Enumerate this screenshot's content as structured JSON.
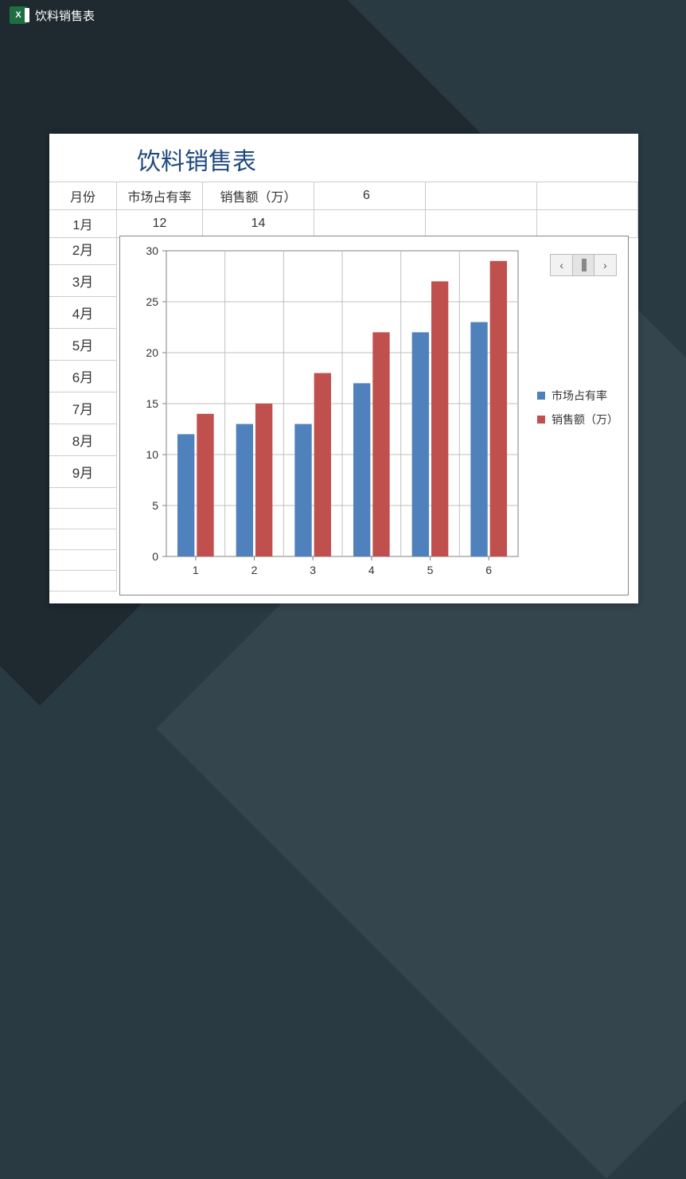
{
  "app_title": "饮料销售表",
  "sheet_title": "饮料销售表",
  "headers": {
    "month": "月份",
    "col1": "市场占有率",
    "col2": "销售额（万）",
    "col3_value": "6"
  },
  "first_data_row": {
    "month": "1月",
    "val1": "12",
    "val2": "14"
  },
  "month_labels": [
    "2月",
    "3月",
    "4月",
    "5月",
    "6月",
    "7月",
    "8月",
    "9月"
  ],
  "chart": {
    "type": "bar",
    "categories": [
      "1",
      "2",
      "3",
      "4",
      "5",
      "6"
    ],
    "series": [
      {
        "name": "市场占有率",
        "color": "#4f81bd",
        "values": [
          12,
          13,
          13,
          17,
          22,
          23
        ]
      },
      {
        "name": "销售额（万）",
        "color": "#c0504d",
        "values": [
          14,
          15,
          18,
          22,
          27,
          29
        ]
      }
    ],
    "ylim": [
      0,
      30
    ],
    "ytick_step": 5,
    "yticks": [
      "0",
      "5",
      "10",
      "15",
      "20",
      "25",
      "30"
    ],
    "plot_bg": "#ffffff",
    "grid_color": "#bfbfbf",
    "axis_color": "#808080",
    "tick_font_size": 14,
    "legend_font_size": 14,
    "bar_group_width": 0.62,
    "bar_gap": 0.04
  },
  "nav_icons": {
    "left": "‹",
    "right": "›"
  }
}
